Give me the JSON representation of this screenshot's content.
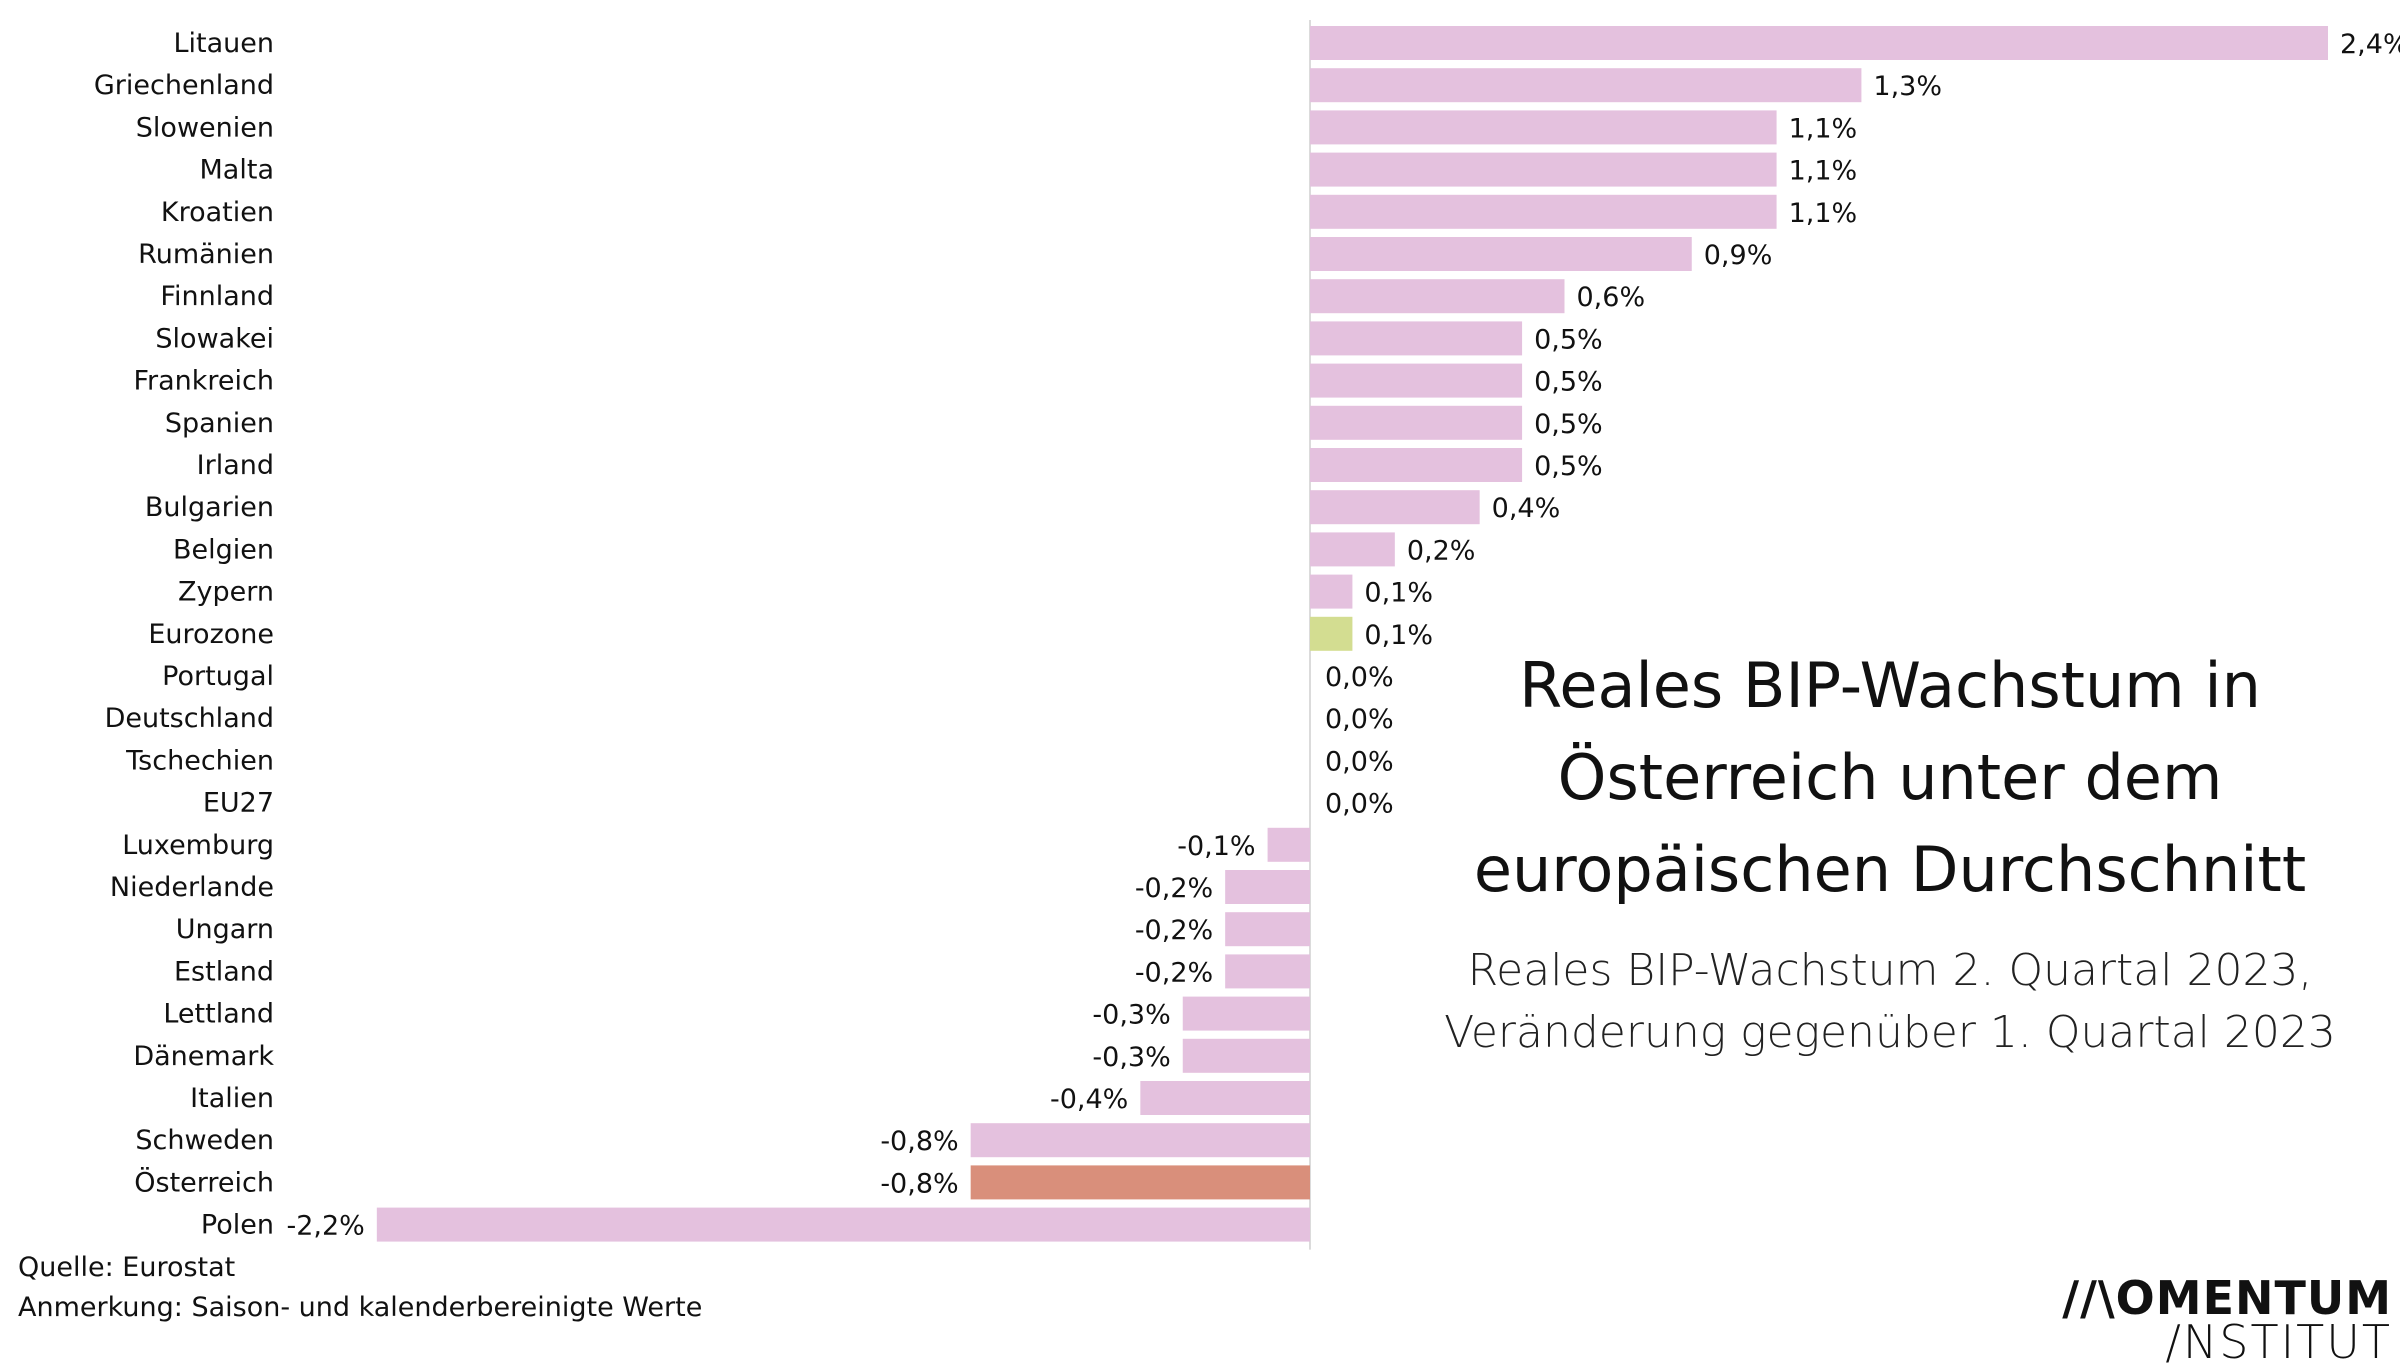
{
  "chart_data": {
    "type": "bar",
    "orientation": "horizontal",
    "title": "Reales BIP-Wachstum in Österreich unter dem europäischen Durchschnitt",
    "subtitle": "Reales BIP-Wachstum 2. Quartal 2023, Veränderung gegenüber 1. Quartal 2023",
    "categories": [
      "Litauen",
      "Griechenland",
      "Slowenien",
      "Malta",
      "Kroatien",
      "Rumänien",
      "Finnland",
      "Slowakei",
      "Frankreich",
      "Spanien",
      "Irland",
      "Bulgarien",
      "Belgien",
      "Zypern",
      "Eurozone",
      "Portugal",
      "Deutschland",
      "Tschechien",
      "EU27",
      "Luxemburg",
      "Niederlande",
      "Ungarn",
      "Estland",
      "Lettland",
      "Dänemark",
      "Italien",
      "Schweden",
      "Österreich",
      "Polen"
    ],
    "values": [
      2.4,
      1.3,
      1.1,
      1.1,
      1.1,
      0.9,
      0.6,
      0.5,
      0.5,
      0.5,
      0.5,
      0.4,
      0.2,
      0.1,
      0.1,
      0.0,
      0.0,
      0.0,
      0.0,
      -0.1,
      -0.2,
      -0.2,
      -0.2,
      -0.3,
      -0.3,
      -0.4,
      -0.8,
      -0.8,
      -2.2
    ],
    "labels": [
      "2,4%",
      "1,3%",
      "1,1%",
      "1,1%",
      "1,1%",
      "0,9%",
      "0,6%",
      "0,5%",
      "0,5%",
      "0,5%",
      "0,5%",
      "0,4%",
      "0,2%",
      "0,1%",
      "0,1%",
      "0,0%",
      "0,0%",
      "0,0%",
      "0,0%",
      "-0,1%",
      "-0,2%",
      "-0,2%",
      "-0,2%",
      "-0,3%",
      "-0,3%",
      "-0,4%",
      "-0,8%",
      "-0,8%",
      "-2,2%"
    ],
    "xlim": [
      -2.2,
      2.4
    ],
    "grid": false,
    "colors": {
      "default": "#e4c1de",
      "Eurozone": "#d3dd91",
      "Österreich": "#d98f7b"
    }
  },
  "footer": {
    "source": "Quelle: Eurostat",
    "note": "Anmerkung: Saison- und kalenderbereinigte Werte"
  },
  "logo": {
    "line1": "//\\OMENTUM",
    "line2": "/NSTITUT"
  }
}
